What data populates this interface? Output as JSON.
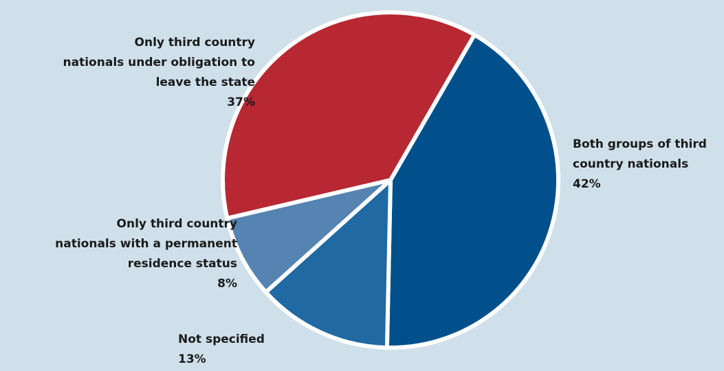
{
  "chart_data": {
    "type": "pie",
    "slices": [
      {
        "label_lines": [
          "Both groups of third",
          "country nationals"
        ],
        "label": "Both groups of third country nationals",
        "value": 42,
        "pct_text": "42%",
        "color": "#01508c"
      },
      {
        "label_lines": [
          "Not specified"
        ],
        "label": "Not specified",
        "value": 13,
        "pct_text": "13%",
        "color": "#2069a3"
      },
      {
        "label_lines": [
          "Only third country",
          "nationals with a permanent",
          "residence status"
        ],
        "label": "Only third country nationals with a permanent residence status",
        "value": 8,
        "pct_text": "8%",
        "color": "#5583b2"
      },
      {
        "label_lines": [
          "Only third  country",
          "nationals under obligation to",
          "leave the state"
        ],
        "label": "Only third  country nationals under obligation to leave the state",
        "value": 37,
        "pct_text": "37%",
        "color": "#b72832"
      }
    ],
    "background": "#cfe0ea",
    "edge_color": "#ffffff"
  }
}
